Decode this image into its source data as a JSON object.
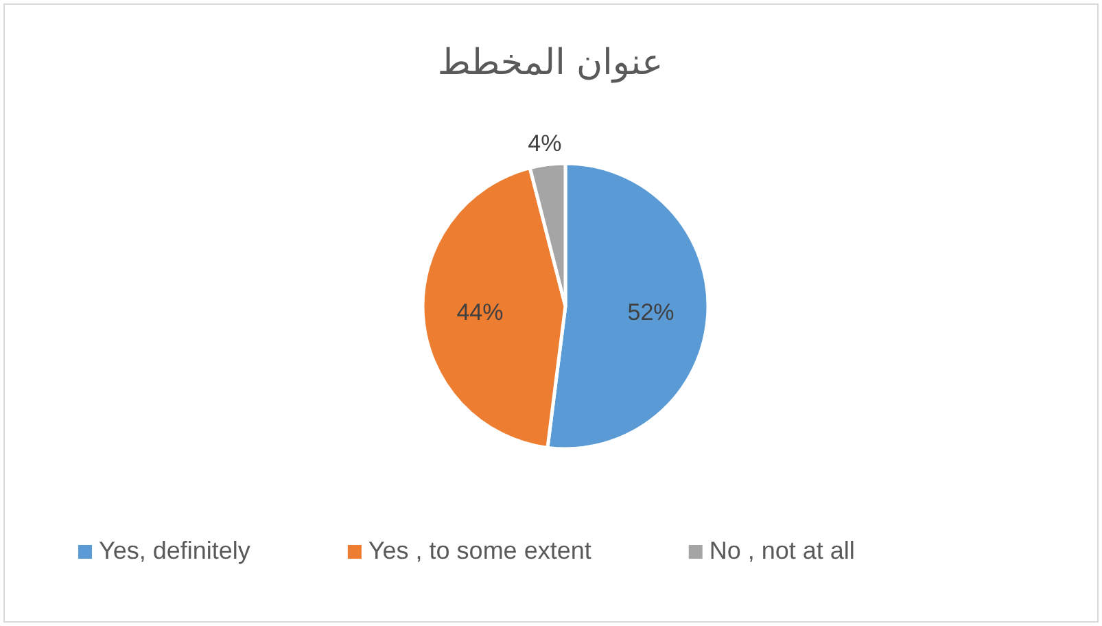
{
  "chart_data": {
    "type": "pie",
    "title": "عنوان المخطط",
    "categories": [
      "Yes, definitely",
      "Yes , to some extent",
      "No , not at all"
    ],
    "values": [
      52,
      44,
      4
    ],
    "colors": [
      "#5b9bd5",
      "#ed7d31",
      "#a5a5a5"
    ],
    "value_labels": [
      "52%",
      "44%",
      "4%"
    ],
    "legend": "bottom"
  }
}
